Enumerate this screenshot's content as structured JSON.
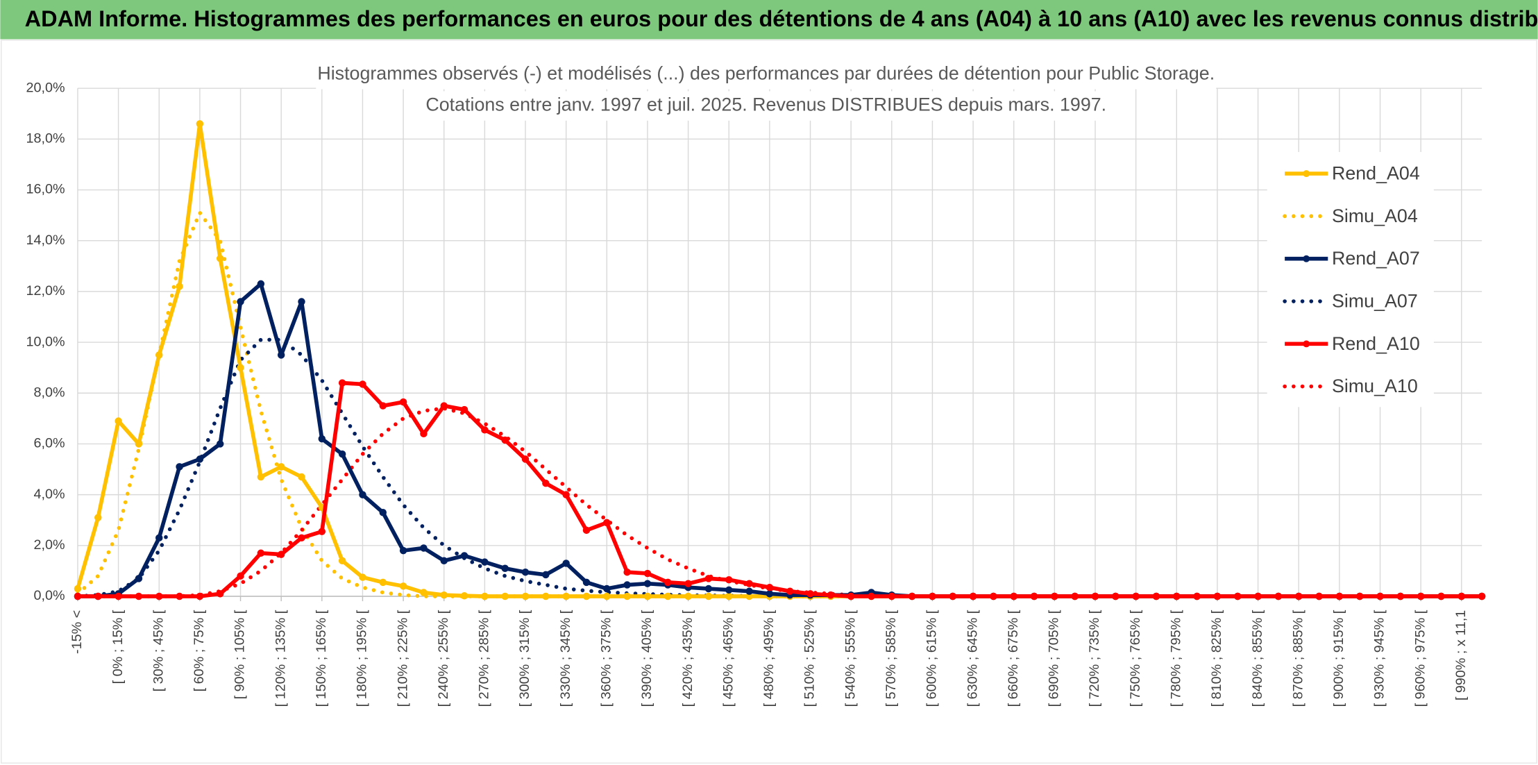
{
  "banner": "ADAM Informe. Histogrammes des performances en euros pour des détentions de 4 ans (A04) à 10 ans (A10) avec les revenus connus distribués",
  "chart_data": {
    "type": "line",
    "title": "Histogrammes observés (-) et modélisés (...) des performances par durées de détention pour Public Storage.",
    "subtitle": "Cotations entre janv. 1997 et juil. 2025. Revenus DISTRIBUES depuis mars. 1997.",
    "categories": [
      "-15% <",
      null,
      "[ 0% ; 15% [",
      null,
      "[ 30% ; 45% [",
      null,
      "[ 60% ; 75% [",
      null,
      "[ 90% ; 105% [",
      null,
      "[ 120% ; 135% [",
      null,
      "[ 150% ; 165% [",
      null,
      "[ 180% ; 195% [",
      null,
      "[ 210% ; 225% [",
      null,
      "[ 240% ; 255% [",
      null,
      "[ 270% ; 285% [",
      null,
      "[ 300% ; 315% [",
      null,
      "[ 330% ; 345% [",
      null,
      "[ 360% ; 375% [",
      null,
      "[ 390% ; 405% [",
      null,
      "[ 420% ; 435% [",
      null,
      "[ 450% ; 465% [",
      null,
      "[ 480% ; 495% [",
      null,
      "[ 510% ; 525% [",
      null,
      "[ 540% ; 555% [",
      null,
      "[ 570% ; 585% [",
      null,
      "[ 600% ; 615% [",
      null,
      "[ 630% ; 645% [",
      null,
      "[ 660% ; 675% [",
      null,
      "[ 690% ; 705% [",
      null,
      "[ 720% ; 735% [",
      null,
      "[ 750% ; 765% [",
      null,
      "[ 780% ; 795% [",
      null,
      "[ 810% ; 825% [",
      null,
      "[ 840% ; 855% [",
      null,
      "[ 870% ; 885% [",
      null,
      "[ 900% ; 915% [",
      null,
      "[ 930% ; 945% [",
      null,
      "[ 960% ; 975% [",
      null,
      "[ 990% ; x 11,1",
      null
    ],
    "series": [
      {
        "name": "Rend_A04",
        "color": "#ffc000",
        "style": "solid",
        "marker": true,
        "values": [
          0.3,
          3.1,
          6.9,
          6.0,
          9.5,
          12.2,
          18.6,
          13.3,
          9.0,
          4.7,
          5.1,
          4.7,
          3.5,
          1.4,
          0.75,
          0.55,
          0.4,
          0.15,
          0.05,
          0.02,
          0,
          0,
          0,
          0,
          0,
          0,
          0,
          0,
          0,
          0,
          0,
          0,
          0,
          0,
          0,
          0,
          0,
          0,
          0,
          0,
          0,
          0,
          0,
          0,
          0,
          0,
          0,
          0,
          0,
          0,
          0,
          0,
          0,
          0,
          0,
          0,
          0,
          0,
          0,
          0,
          0,
          0,
          0,
          0,
          0,
          0,
          0,
          0,
          0,
          0
        ]
      },
      {
        "name": "Simu_A04",
        "color": "#ffc000",
        "style": "dot",
        "marker": false,
        "values": [
          0.1,
          0.8,
          2.6,
          5.8,
          9.5,
          13.2,
          15.1,
          14.0,
          10.6,
          7.3,
          4.6,
          2.7,
          1.4,
          0.7,
          0.35,
          0.15,
          0.05,
          0,
          0,
          0,
          0,
          0,
          0,
          0,
          0,
          0,
          0,
          0,
          0,
          0,
          0,
          0,
          0,
          0,
          0,
          0,
          0,
          0,
          0,
          0,
          0,
          0,
          0,
          0,
          0,
          0,
          0,
          0,
          0,
          0,
          0,
          0,
          0,
          0,
          0,
          0,
          0,
          0,
          0,
          0,
          0,
          0,
          0,
          0,
          0,
          0,
          0,
          0,
          0,
          0
        ]
      },
      {
        "name": "Rend_A07",
        "color": "#002060",
        "style": "solid",
        "marker": true,
        "values": [
          0,
          0,
          0.1,
          0.7,
          2.3,
          5.1,
          5.4,
          6.0,
          11.6,
          12.3,
          9.5,
          11.6,
          6.2,
          5.6,
          4.0,
          3.3,
          1.8,
          1.9,
          1.4,
          1.6,
          1.35,
          1.1,
          0.95,
          0.85,
          1.3,
          0.55,
          0.3,
          0.45,
          0.5,
          0.45,
          0.35,
          0.3,
          0.25,
          0.2,
          0.1,
          0.05,
          0.05,
          0.05,
          0.05,
          0.15,
          0.05,
          0,
          0,
          0,
          0,
          0,
          0,
          0,
          0,
          0,
          0,
          0,
          0,
          0,
          0,
          0,
          0,
          0,
          0,
          0,
          0,
          0,
          0,
          0,
          0,
          0,
          0,
          0,
          0,
          0
        ]
      },
      {
        "name": "Simu_A07",
        "color": "#002060",
        "style": "dot",
        "marker": false,
        "values": [
          0,
          0.05,
          0.2,
          0.7,
          1.8,
          3.4,
          5.3,
          7.4,
          9.3,
          10.1,
          10.1,
          9.5,
          8.5,
          7.2,
          5.9,
          4.7,
          3.6,
          2.7,
          2.0,
          1.5,
          1.1,
          0.8,
          0.6,
          0.45,
          0.3,
          0.22,
          0.16,
          0.12,
          0.09,
          0.06,
          0.04,
          0.03,
          0.02,
          0.01,
          0,
          0,
          0,
          0,
          0,
          0,
          0,
          0,
          0,
          0,
          0,
          0,
          0,
          0,
          0,
          0,
          0,
          0,
          0,
          0,
          0,
          0,
          0,
          0,
          0,
          0,
          0,
          0,
          0,
          0,
          0,
          0,
          0,
          0,
          0,
          0
        ]
      },
      {
        "name": "Rend_A10",
        "color": "#ff0000",
        "style": "solid",
        "marker": true,
        "values": [
          0,
          0,
          0,
          0,
          0,
          0,
          0,
          0.1,
          0.8,
          1.7,
          1.65,
          2.3,
          2.55,
          8.4,
          8.35,
          7.5,
          7.65,
          6.4,
          7.5,
          7.35,
          6.55,
          6.15,
          5.4,
          4.45,
          4.0,
          2.6,
          2.9,
          0.95,
          0.9,
          0.55,
          0.5,
          0.7,
          0.65,
          0.5,
          0.35,
          0.2,
          0.1,
          0.05,
          0,
          0,
          0,
          0,
          0,
          0,
          0,
          0,
          0,
          0,
          0,
          0,
          0,
          0,
          0,
          0,
          0,
          0,
          0,
          0,
          0,
          0,
          0,
          0,
          0,
          0,
          0,
          0,
          0,
          0,
          0,
          0
        ]
      },
      {
        "name": "Simu_A10",
        "color": "#ff0000",
        "style": "dot",
        "marker": false,
        "values": [
          0,
          0,
          0,
          0,
          0,
          0,
          0.05,
          0.2,
          0.5,
          1.0,
          1.7,
          2.6,
          3.6,
          4.6,
          5.6,
          6.4,
          7.0,
          7.3,
          7.4,
          7.2,
          6.8,
          6.3,
          5.7,
          5.0,
          4.3,
          3.6,
          3.0,
          2.4,
          1.9,
          1.45,
          1.1,
          0.8,
          0.6,
          0.45,
          0.3,
          0.2,
          0.15,
          0.1,
          0.05,
          0,
          0,
          0,
          0,
          0,
          0,
          0,
          0,
          0,
          0,
          0,
          0,
          0,
          0,
          0,
          0,
          0,
          0,
          0,
          0,
          0,
          0,
          0,
          0,
          0,
          0,
          0,
          0,
          0,
          0,
          0
        ]
      }
    ],
    "ylim": [
      0,
      20
    ],
    "yticks": [
      {
        "value": 0,
        "label": "0,0%"
      },
      {
        "value": 2,
        "label": "2,0%"
      },
      {
        "value": 4,
        "label": "4,0%"
      },
      {
        "value": 6,
        "label": "6,0%"
      },
      {
        "value": 8,
        "label": "8,0%"
      },
      {
        "value": 10,
        "label": "10,0%"
      },
      {
        "value": 12,
        "label": "12,0%"
      },
      {
        "value": 14,
        "label": "14,0%"
      },
      {
        "value": 16,
        "label": "16,0%"
      },
      {
        "value": 18,
        "label": "18,0%"
      },
      {
        "value": 20,
        "label": "20,0%"
      }
    ],
    "grid": true,
    "legend": "right"
  }
}
